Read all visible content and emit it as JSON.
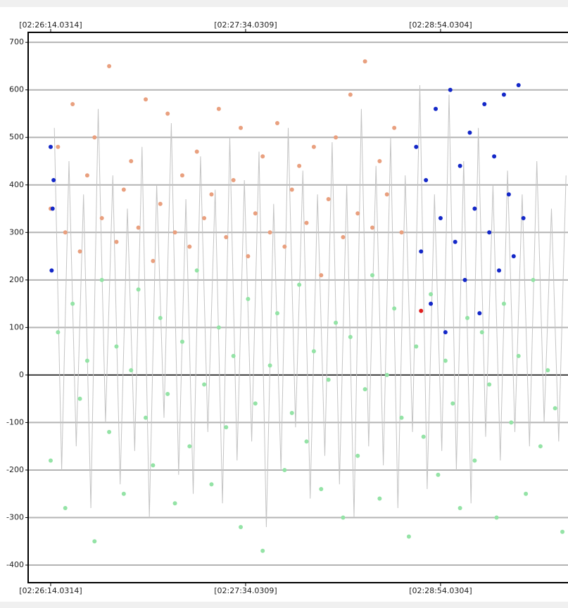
{
  "chart_data": {
    "type": "scatter",
    "xlim": [
      -9.24,
      212.3
    ],
    "ylim": [
      -437,
      721
    ],
    "xticks": [
      {
        "value": 0,
        "label": "[02:26:14.0314]"
      },
      {
        "value": 80,
        "label": "[02:27:34.0309]"
      },
      {
        "value": 160,
        "label": "[02:28:54.0304]"
      }
    ],
    "yticks": [
      -400,
      -300,
      -200,
      -100,
      0,
      100,
      200,
      300,
      400,
      500,
      600,
      700
    ],
    "grid": true,
    "series": [
      {
        "style": "line",
        "color": "#c4c4c4",
        "x": [
          1.5,
          4.5,
          7.5,
          10.5,
          13.5,
          16.5,
          19.5,
          22.5,
          25.5,
          28.5,
          31.5,
          34.5,
          37.5,
          40.5,
          43.5,
          46.5,
          49.5,
          52.5,
          55.5,
          58.5,
          61.5,
          64.5,
          67.5,
          70.5,
          73.5,
          76.5,
          79.5,
          82.5,
          85.5,
          88.5,
          91.5,
          94.5,
          97.5,
          100.5,
          103.5,
          106.5,
          109.5,
          112.5,
          115.5,
          118.5,
          121.5,
          124.5,
          127.5,
          130.5,
          133.5,
          136.5,
          139.5,
          142.5,
          145.5,
          148.5,
          151.5,
          154.5,
          157.5,
          160.5,
          163.5,
          166.5,
          169.5,
          172.5,
          175.5,
          178.5,
          181.5,
          184.5,
          187.5,
          190.5,
          193.5,
          196.5,
          199.5,
          202.5,
          205.5,
          208.5,
          211.5
        ],
        "values": [
          520,
          -200,
          450,
          -150,
          380,
          -280,
          560,
          -100,
          420,
          -230,
          350,
          -160,
          480,
          -300,
          400,
          -90,
          530,
          -210,
          370,
          -250,
          460,
          -120,
          390,
          -270,
          500,
          -180,
          410,
          -140,
          470,
          -320,
          360,
          -200,
          520,
          -110,
          430,
          -260,
          380,
          -170,
          490,
          -230,
          400,
          -300,
          560,
          -150,
          440,
          -190,
          500,
          -280,
          420,
          -120,
          610,
          -240,
          380,
          -160,
          590,
          -200,
          450,
          -270,
          520,
          -130,
          400,
          -180,
          430,
          -120,
          380,
          -150,
          450,
          -100,
          350,
          -140,
          420
        ]
      },
      {
        "style": "points",
        "color": "#94e3a6",
        "x": [
          0,
          3,
          6,
          9,
          12,
          15,
          18,
          21,
          24,
          27,
          30,
          33,
          36,
          39,
          42,
          45,
          48,
          51,
          54,
          57,
          60,
          63,
          66,
          69,
          72,
          75,
          78,
          81,
          84,
          87,
          90,
          93,
          96,
          99,
          102,
          105,
          108,
          111,
          114,
          117,
          120,
          123,
          126,
          129,
          132,
          135,
          138,
          141,
          144,
          147,
          150,
          153,
          156,
          159,
          162,
          165,
          168,
          171,
          174,
          177,
          180,
          183,
          186,
          189,
          192,
          195,
          198,
          201,
          204,
          207,
          210
        ],
        "values": [
          -180,
          90,
          -280,
          150,
          -50,
          30,
          -350,
          200,
          -120,
          60,
          -250,
          10,
          180,
          -90,
          -190,
          120,
          -40,
          -270,
          70,
          -150,
          220,
          -20,
          -230,
          100,
          -110,
          40,
          -320,
          160,
          -60,
          -370,
          20,
          130,
          -200,
          -80,
          190,
          -140,
          50,
          -240,
          -10,
          110,
          -300,
          80,
          -170,
          -30,
          210,
          -260,
          0,
          140,
          -90,
          -340,
          60,
          -130,
          170,
          -210,
          30,
          -60,
          -280,
          120,
          -180,
          90,
          -20,
          -300,
          150,
          -100,
          40,
          -250,
          200,
          -150,
          10,
          -70,
          -330
        ]
      },
      {
        "style": "points",
        "color": "#e9a07f",
        "x": [
          0,
          3,
          6,
          9,
          12,
          15,
          18,
          21,
          24,
          27,
          30,
          33,
          36,
          39,
          42,
          45,
          48,
          51,
          54,
          57,
          60,
          63,
          66,
          69,
          72,
          75,
          78,
          81,
          84,
          87,
          90,
          93,
          96,
          99,
          102,
          105,
          108,
          111,
          114,
          117,
          120,
          123,
          126,
          129,
          132,
          135,
          138,
          141,
          144
        ],
        "values": [
          350,
          480,
          300,
          570,
          260,
          420,
          500,
          330,
          650,
          280,
          390,
          450,
          310,
          580,
          240,
          360,
          550,
          300,
          420,
          270,
          470,
          330,
          380,
          560,
          290,
          410,
          520,
          250,
          340,
          460,
          300,
          530,
          270,
          390,
          440,
          320,
          480,
          210,
          370,
          500,
          290,
          590,
          340,
          660,
          310,
          450,
          380,
          520,
          300
        ]
      },
      {
        "style": "points",
        "color": "#1428c8",
        "x": [
          0,
          0.4,
          0.8,
          1.2,
          150,
          152,
          154,
          156,
          158,
          160,
          162,
          164,
          166,
          168,
          170,
          172,
          174,
          176,
          178,
          180,
          182,
          184,
          186,
          188,
          190,
          192,
          194
        ],
        "values": [
          480,
          220,
          350,
          410,
          480,
          260,
          410,
          150,
          560,
          330,
          90,
          600,
          280,
          440,
          200,
          510,
          350,
          130,
          570,
          300,
          460,
          220,
          590,
          380,
          250,
          610,
          330
        ]
      },
      {
        "style": "points",
        "color": "#e02020",
        "x": [
          152
        ],
        "values": [
          135
        ]
      }
    ]
  }
}
